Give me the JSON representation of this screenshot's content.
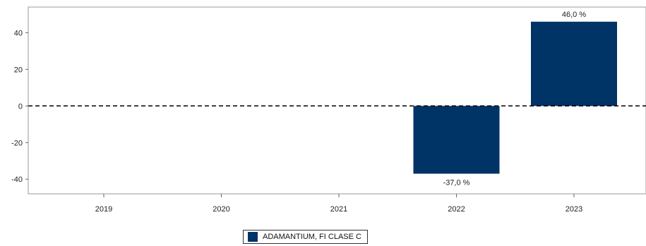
{
  "chart_data": {
    "type": "bar",
    "categories": [
      "2019",
      "2020",
      "2021",
      "2022",
      "2023"
    ],
    "series": [
      {
        "name": "ADAMANTIUM, FI CLASE C",
        "values": [
          null,
          null,
          null,
          -37.0,
          46.0
        ],
        "labels": [
          null,
          null,
          null,
          "-37,0 %",
          "46,0 %"
        ],
        "color": "#003366"
      }
    ],
    "ylim": [
      -48,
      54
    ],
    "yticks": [
      40,
      20,
      0,
      -20,
      -40
    ],
    "ytick_labels": [
      "40",
      "20",
      "0",
      "-20",
      "-40"
    ],
    "reference_line": {
      "y": 0,
      "style": "dashed"
    },
    "legend_position": "bottom-center"
  }
}
